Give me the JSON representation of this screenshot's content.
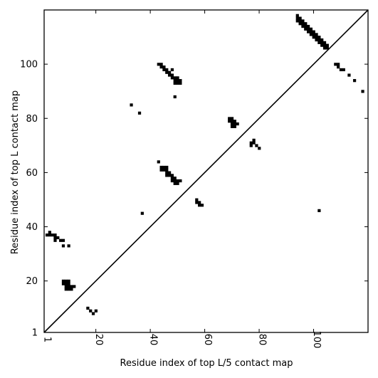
{
  "chart_data": {
    "type": "scatter",
    "title": "",
    "xlabel": "Residue index of top L/5 contact map",
    "ylabel": "Residue index of top L contact map",
    "xlim": [
      1,
      120
    ],
    "ylim": [
      1,
      120
    ],
    "x_ticks": [
      1,
      20,
      40,
      60,
      80,
      100
    ],
    "y_ticks": [
      1,
      20,
      40,
      60,
      80,
      100
    ],
    "grid": false,
    "diagonal": true,
    "marker": "square",
    "color": "#000000",
    "series": [
      {
        "points": [
          [
            94,
            118
          ],
          [
            94,
            117
          ],
          [
            95,
            117
          ],
          [
            94,
            116
          ],
          [
            95,
            116
          ],
          [
            96,
            116
          ],
          [
            95,
            115
          ],
          [
            96,
            115
          ],
          [
            97,
            115
          ],
          [
            96,
            114
          ],
          [
            97,
            114
          ],
          [
            98,
            114
          ],
          [
            97,
            113
          ],
          [
            98,
            113
          ],
          [
            99,
            113
          ],
          [
            98,
            112
          ],
          [
            99,
            112
          ],
          [
            100,
            112
          ],
          [
            99,
            111
          ],
          [
            100,
            111
          ],
          [
            101,
            111
          ],
          [
            100,
            110
          ],
          [
            101,
            110
          ],
          [
            102,
            110
          ],
          [
            101,
            109
          ],
          [
            102,
            109
          ],
          [
            103,
            109
          ],
          [
            102,
            108
          ],
          [
            103,
            108
          ],
          [
            104,
            108
          ],
          [
            103,
            107
          ],
          [
            104,
            107
          ],
          [
            105,
            107
          ],
          [
            104,
            106
          ],
          [
            105,
            106
          ],
          [
            108,
            100
          ],
          [
            109,
            100
          ],
          [
            109,
            99
          ],
          [
            110,
            98
          ],
          [
            111,
            98
          ],
          [
            113,
            96
          ],
          [
            115,
            94
          ],
          [
            118,
            90
          ],
          [
            43,
            100
          ],
          [
            44,
            100
          ],
          [
            44,
            99
          ],
          [
            45,
            99
          ],
          [
            45,
            98
          ],
          [
            46,
            98
          ],
          [
            48,
            98
          ],
          [
            46,
            97
          ],
          [
            47,
            97
          ],
          [
            47,
            96
          ],
          [
            48,
            96
          ],
          [
            48,
            95
          ],
          [
            49,
            95
          ],
          [
            50,
            95
          ],
          [
            49,
            94
          ],
          [
            50,
            94
          ],
          [
            51,
            94
          ],
          [
            49,
            93
          ],
          [
            50,
            93
          ],
          [
            51,
            93
          ],
          [
            49,
            88
          ],
          [
            33,
            85
          ],
          [
            36,
            82
          ],
          [
            69,
            80
          ],
          [
            70,
            80
          ],
          [
            69,
            79
          ],
          [
            70,
            79
          ],
          [
            71,
            79
          ],
          [
            70,
            78
          ],
          [
            71,
            78
          ],
          [
            72,
            78
          ],
          [
            70,
            77
          ],
          [
            71,
            77
          ],
          [
            78,
            72
          ],
          [
            77,
            71
          ],
          [
            78,
            71
          ],
          [
            77,
            70
          ],
          [
            79,
            70
          ],
          [
            80,
            69
          ],
          [
            43,
            64
          ],
          [
            44,
            62
          ],
          [
            45,
            62
          ],
          [
            46,
            62
          ],
          [
            44,
            61
          ],
          [
            45,
            61
          ],
          [
            46,
            61
          ],
          [
            46,
            60
          ],
          [
            47,
            60
          ],
          [
            46,
            59
          ],
          [
            47,
            59
          ],
          [
            48,
            59
          ],
          [
            48,
            58
          ],
          [
            49,
            58
          ],
          [
            48,
            57
          ],
          [
            49,
            57
          ],
          [
            50,
            57
          ],
          [
            51,
            57
          ],
          [
            49,
            56
          ],
          [
            50,
            56
          ],
          [
            57,
            50
          ],
          [
            57,
            49
          ],
          [
            58,
            49
          ],
          [
            58,
            48
          ],
          [
            59,
            48
          ],
          [
            102,
            46
          ],
          [
            37,
            45
          ],
          [
            3,
            38
          ],
          [
            2,
            37
          ],
          [
            3,
            37
          ],
          [
            4,
            37
          ],
          [
            5,
            37
          ],
          [
            5,
            36
          ],
          [
            6,
            36
          ],
          [
            5,
            35
          ],
          [
            7,
            35
          ],
          [
            8,
            35
          ],
          [
            8,
            33
          ],
          [
            10,
            33
          ],
          [
            8,
            20
          ],
          [
            9,
            20
          ],
          [
            10,
            20
          ],
          [
            8,
            19
          ],
          [
            9,
            19
          ],
          [
            10,
            19
          ],
          [
            9,
            18
          ],
          [
            10,
            18
          ],
          [
            11,
            18
          ],
          [
            12,
            18
          ],
          [
            9,
            17
          ],
          [
            10,
            17
          ],
          [
            11,
            17
          ],
          [
            17,
            10
          ],
          [
            18,
            9
          ],
          [
            20,
            9
          ],
          [
            19,
            8
          ]
        ]
      }
    ]
  }
}
